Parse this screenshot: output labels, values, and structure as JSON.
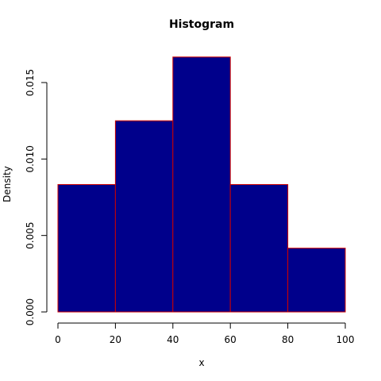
{
  "chart_data": {
    "type": "bar",
    "title": "Histogram",
    "xlabel": "x",
    "ylabel": "Density",
    "bins": [
      {
        "from": 0,
        "to": 20,
        "density": 0.00833
      },
      {
        "from": 20,
        "to": 40,
        "density": 0.0125
      },
      {
        "from": 40,
        "to": 60,
        "density": 0.01667
      },
      {
        "from": 60,
        "to": 80,
        "density": 0.00833
      },
      {
        "from": 80,
        "to": 100,
        "density": 0.00417
      }
    ],
    "xlim": [
      0,
      100
    ],
    "ylim": [
      0,
      0.015
    ],
    "x_ticks": [
      {
        "value": 0,
        "label": "0"
      },
      {
        "value": 20,
        "label": "20"
      },
      {
        "value": 40,
        "label": "40"
      },
      {
        "value": 60,
        "label": "60"
      },
      {
        "value": 80,
        "label": "80"
      },
      {
        "value": 100,
        "label": "100"
      }
    ],
    "y_ticks": [
      {
        "value": 0,
        "label": "0.000"
      },
      {
        "value": 0.005,
        "label": "0.005"
      },
      {
        "value": 0.01,
        "label": "0.010"
      },
      {
        "value": 0.015,
        "label": "0.015"
      }
    ],
    "grid": false,
    "colors": {
      "fill": "#00008b",
      "border": "#cc0000",
      "axis": "#000000"
    }
  }
}
